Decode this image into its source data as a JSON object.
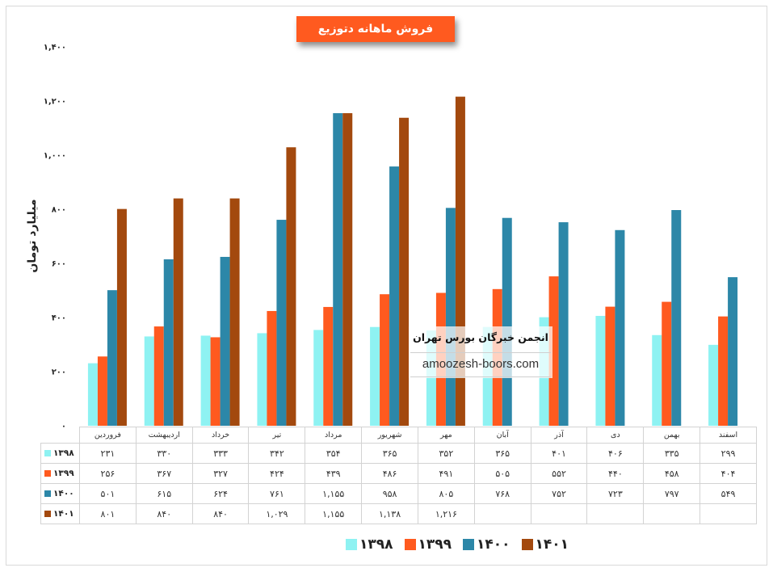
{
  "chart_data": {
    "type": "bar",
    "title": "فروش ماهانه دتوزیع",
    "ylabel": "میلیارد تومان",
    "ylim": [
      0,
      1400
    ],
    "yticks": [
      0,
      200,
      400,
      600,
      800,
      1000,
      1200,
      1400
    ],
    "ytick_labels": [
      "۰",
      "۲۰۰",
      "۴۰۰",
      "۶۰۰",
      "۸۰۰",
      "۱,۰۰۰",
      "۱,۲۰۰",
      "۱,۴۰۰"
    ],
    "grid": false,
    "legend": "bottom",
    "categories": [
      "فروردین",
      "اردیبهشت",
      "خرداد",
      "تیر",
      "مرداد",
      "شهریور",
      "مهر",
      "آبان",
      "آذر",
      "دی",
      "بهمن",
      "اسفند"
    ],
    "series": [
      {
        "name": "۱۳۹۸",
        "color": "#8EF2F2",
        "values": [
          231,
          330,
          333,
          342,
          354,
          365,
          352,
          365,
          401,
          406,
          335,
          299
        ],
        "labels": [
          "۲۳۱",
          "۳۳۰",
          "۳۳۳",
          "۳۴۲",
          "۳۵۴",
          "۳۶۵",
          "۳۵۲",
          "۳۶۵",
          "۴۰۱",
          "۴۰۶",
          "۳۳۵",
          "۲۹۹"
        ]
      },
      {
        "name": "۱۳۹۹",
        "color": "#FF5A1F",
        "values": [
          256,
          367,
          327,
          424,
          439,
          486,
          491,
          505,
          552,
          440,
          458,
          404
        ],
        "labels": [
          "۲۵۶",
          "۳۶۷",
          "۳۲۷",
          "۴۲۴",
          "۴۳۹",
          "۴۸۶",
          "۴۹۱",
          "۵۰۵",
          "۵۵۲",
          "۴۴۰",
          "۴۵۸",
          "۴۰۴"
        ]
      },
      {
        "name": "۱۴۰۰",
        "color": "#2C87A8",
        "values": [
          501,
          615,
          624,
          761,
          1155,
          958,
          805,
          768,
          752,
          723,
          797,
          549
        ],
        "labels": [
          "۵۰۱",
          "۶۱۵",
          "۶۲۴",
          "۷۶۱",
          "۱,۱۵۵",
          "۹۵۸",
          "۸۰۵",
          "۷۶۸",
          "۷۵۲",
          "۷۲۳",
          "۷۹۷",
          "۵۴۹"
        ]
      },
      {
        "name": "۱۴۰۱",
        "color": "#A3490E",
        "values": [
          801,
          840,
          840,
          1029,
          1155,
          1138,
          1216,
          null,
          null,
          null,
          null,
          null
        ],
        "labels": [
          "۸۰۱",
          "۸۴۰",
          "۸۴۰",
          "۱,۰۲۹",
          "۱,۱۵۵",
          "۱,۱۳۸",
          "۱,۲۱۶",
          null,
          null,
          null,
          null,
          null
        ]
      }
    ]
  },
  "colors": {
    "title_bg": "#FF5A1F",
    "title_text": "#FFFFFF"
  },
  "watermark": {
    "line1": "انجمن خبرگان بورس تهران",
    "line2": "amoozesh-boors.com"
  }
}
